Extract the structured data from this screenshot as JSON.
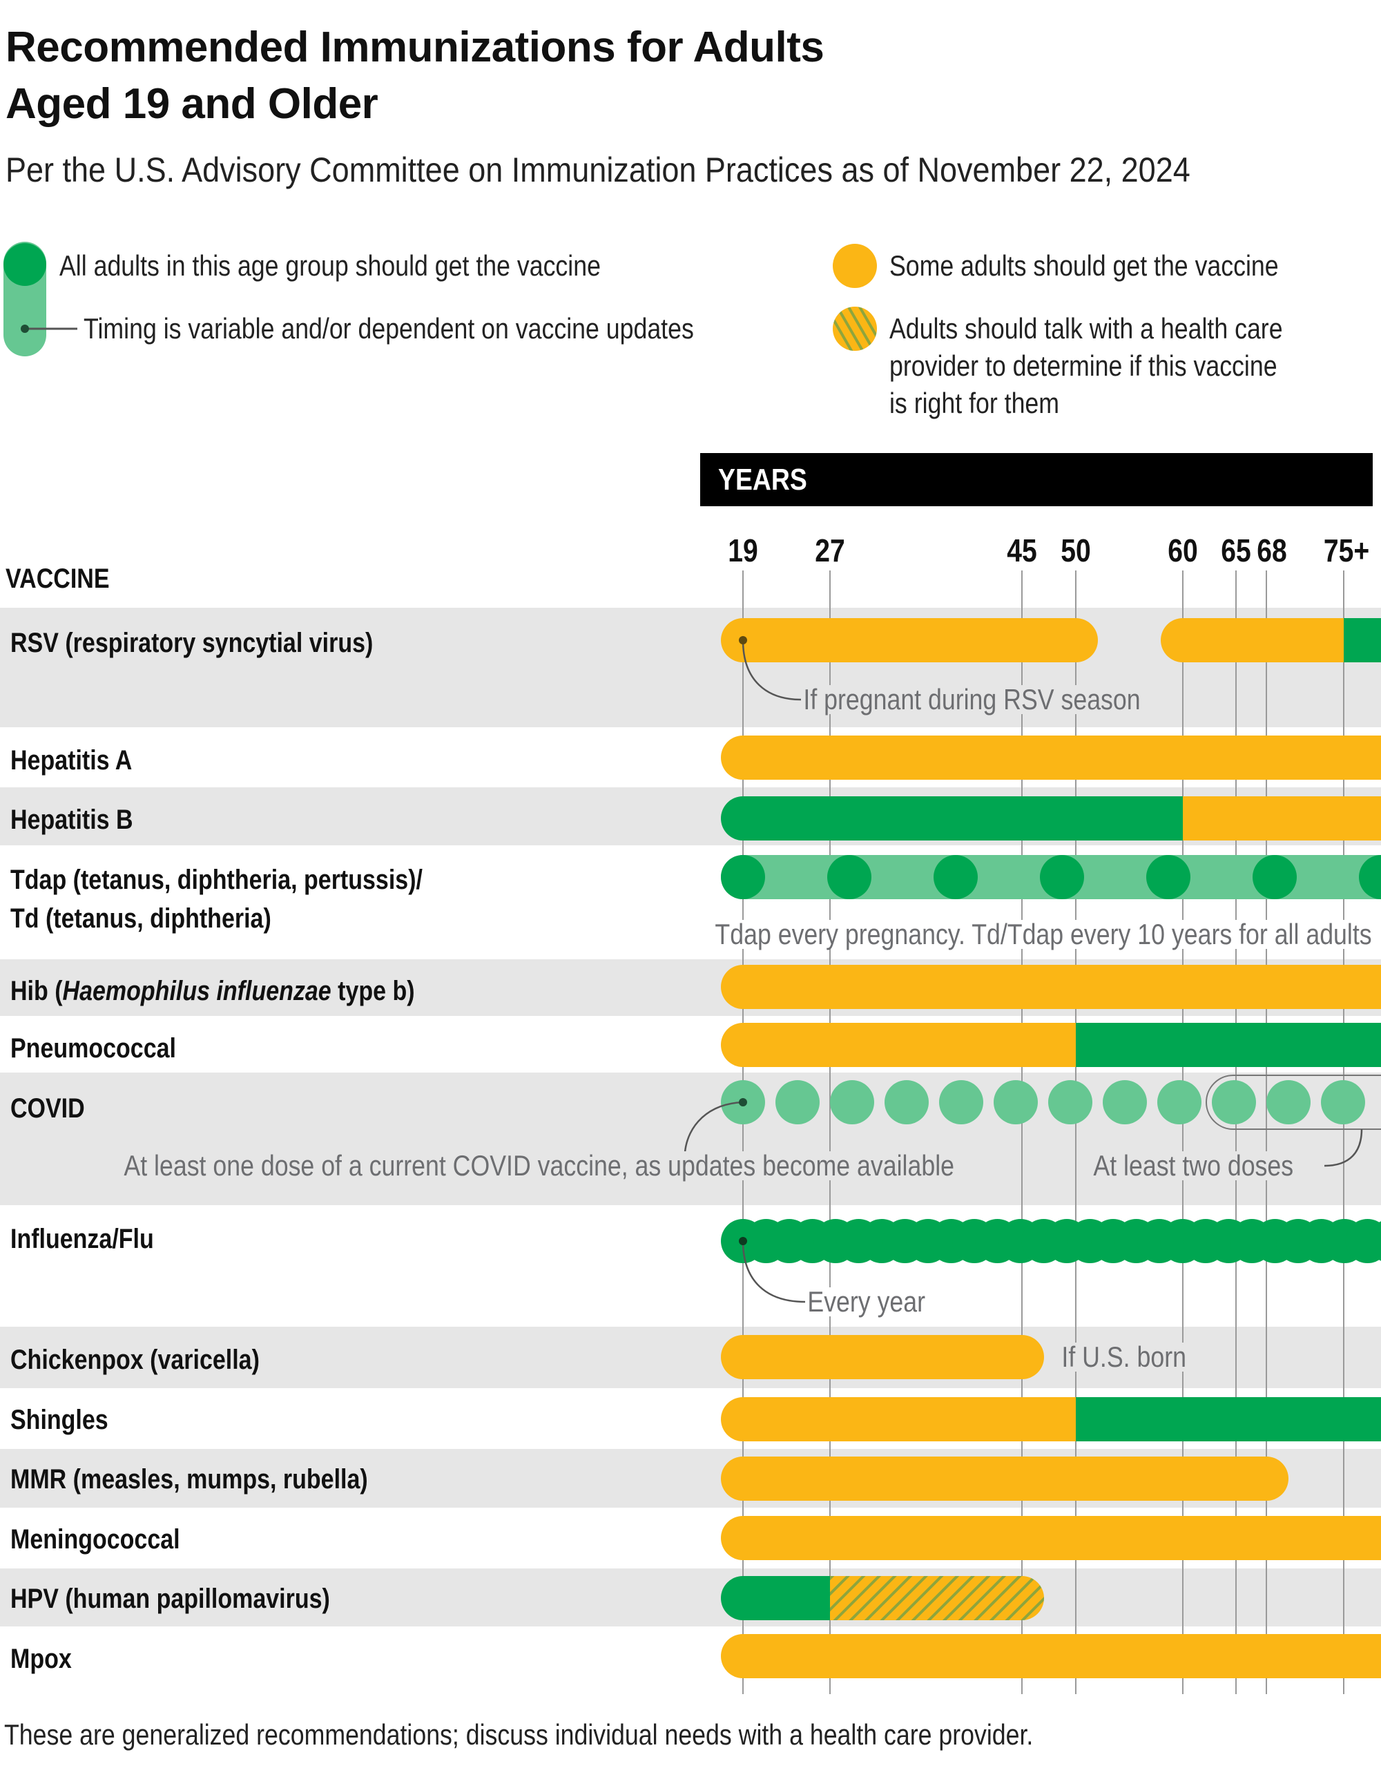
{
  "title_line1": "Recommended Immunizations for Adults",
  "title_line2": "Aged 19 and Older",
  "subtitle": "Per the U.S. Advisory Committee on Immunization Practices as of November 22, 2024",
  "legend": {
    "all": "All adults in this age group should get the vaccine",
    "timing": "Timing is variable and/or dependent on vaccine updates",
    "some": "Some adults should get the vaccine",
    "talk_lines": [
      "Adults should talk with a health care",
      "provider to determine if this vaccine",
      "is right for them"
    ]
  },
  "colors": {
    "all": "#00a651",
    "timing": "#66c792",
    "some": "#fbb615",
    "hatch_stripe": "#8ea53c",
    "band": "#e6e6e6",
    "grid": "#9a9a9a",
    "note": "#6d6e71"
  },
  "footer": "These are generalized recommendations; discuss individual needs with a health care provider.",
  "chart_data": {
    "type": "timeline",
    "axis_title": "YEARS",
    "row_header": "VACCINE",
    "x_ticks": [
      19,
      27,
      45,
      50,
      60,
      65,
      68,
      75
    ],
    "x_tick_labels": [
      "19",
      "27",
      "45",
      "50",
      "60",
      "65",
      "68",
      "75+"
    ],
    "rows": [
      {
        "label": "RSV (respiratory syncytial virus)",
        "segments": [
          {
            "from": 19,
            "to": 50,
            "type": "some",
            "pill": 1
          },
          {
            "from": 60,
            "to": 75,
            "type": "some",
            "pill": 2
          },
          {
            "from": 75,
            "to": null,
            "type": "all",
            "pill": 2
          }
        ],
        "note": "If pregnant during RSV season"
      },
      {
        "label": "Hepatitis A",
        "segments": [
          {
            "from": 19,
            "to": null,
            "type": "some"
          }
        ]
      },
      {
        "label": "Hepatitis B",
        "segments": [
          {
            "from": 19,
            "to": 60,
            "type": "all"
          },
          {
            "from": 60,
            "to": null,
            "type": "some"
          }
        ]
      },
      {
        "label_lines": [
          "Tdap (tetanus, diphtheria, pertussis)/",
          "Td (tetanus, diphtheria)"
        ],
        "segments": [
          {
            "from": 19,
            "to": null,
            "type": "timing",
            "doses": "every 10 years"
          }
        ],
        "note": "Tdap every pregnancy. Td/Tdap every 10 years for all adults"
      },
      {
        "label_parts": [
          "Hib (",
          "Haemophilus influenzae",
          " type b)"
        ],
        "segments": [
          {
            "from": 19,
            "to": null,
            "type": "some"
          }
        ]
      },
      {
        "label": "Pneumococcal",
        "segments": [
          {
            "from": 19,
            "to": 50,
            "type": "some"
          },
          {
            "from": 50,
            "to": null,
            "type": "all"
          }
        ]
      },
      {
        "label": "COVID",
        "segments": [
          {
            "from": 19,
            "to": null,
            "type": "timing",
            "doses": "updates"
          }
        ],
        "note": "At least one dose of a current COVID vaccine, as updates become available",
        "note2": "At least two doses",
        "note2_from": 65
      },
      {
        "label": "Influenza/Flu",
        "segments": [
          {
            "from": 19,
            "to": null,
            "type": "all",
            "doses": "every year"
          }
        ],
        "note": "Every year"
      },
      {
        "label": "Chickenpox (varicella)",
        "segments": [
          {
            "from": 19,
            "to": 45,
            "type": "some"
          }
        ],
        "note": "If U.S. born"
      },
      {
        "label": "Shingles",
        "segments": [
          {
            "from": 19,
            "to": 50,
            "type": "some"
          },
          {
            "from": 50,
            "to": null,
            "type": "all"
          }
        ]
      },
      {
        "label": "MMR (measles, mumps, rubella)",
        "segments": [
          {
            "from": 19,
            "to": 68,
            "type": "some"
          }
        ]
      },
      {
        "label": "Meningococcal",
        "segments": [
          {
            "from": 19,
            "to": null,
            "type": "some"
          }
        ]
      },
      {
        "label": "HPV (human papillomavirus)",
        "segments": [
          {
            "from": 19,
            "to": 27,
            "type": "all"
          },
          {
            "from": 27,
            "to": 45,
            "type": "talk"
          }
        ]
      },
      {
        "label": "Mpox",
        "segments": [
          {
            "from": 19,
            "to": null,
            "type": "some"
          }
        ]
      }
    ]
  }
}
